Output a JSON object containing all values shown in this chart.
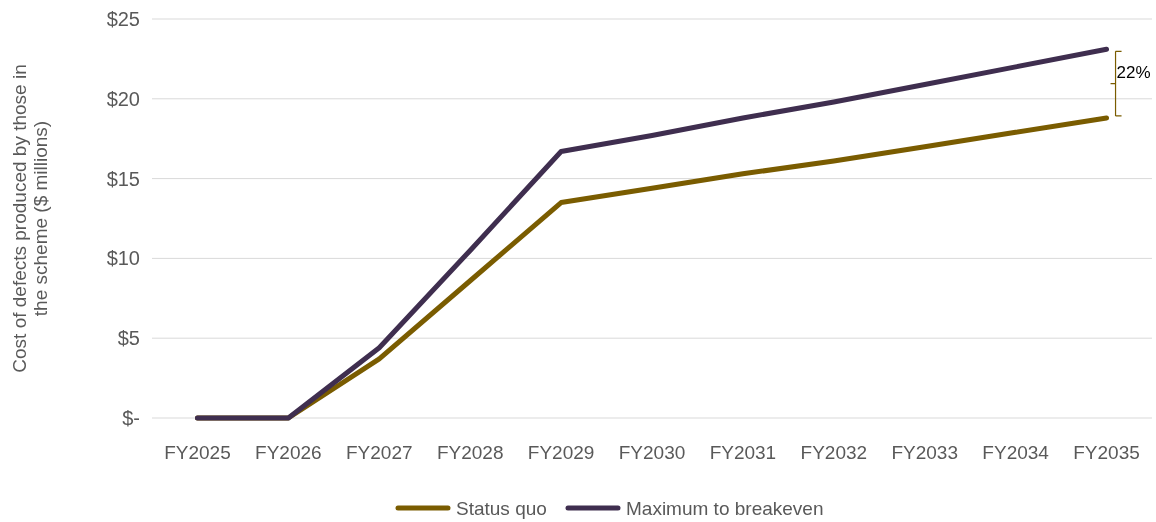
{
  "chart_data": {
    "type": "line",
    "ylabel": "Cost of defects produced by those in the scheme ($ millions)",
    "categories": [
      "FY2025",
      "FY2026",
      "FY2027",
      "FY2028",
      "FY2029",
      "FY2030",
      "FY2031",
      "FY2032",
      "FY2033",
      "FY2034",
      "FY2035"
    ],
    "series": [
      {
        "name": "Status quo",
        "color": "#7a5c00",
        "values": [
          0,
          0,
          3.7,
          8.6,
          13.5,
          14.4,
          15.3,
          16.1,
          17.0,
          17.9,
          18.8
        ]
      },
      {
        "name": "Maximum to breakeven",
        "color": "#3f2e4f",
        "values": [
          0,
          0,
          4.4,
          10.5,
          16.7,
          17.7,
          18.8,
          19.8,
          20.9,
          22.0,
          23.1
        ]
      }
    ],
    "ylim": [
      0,
      25
    ],
    "yticks": [
      {
        "value": 0,
        "label": "$-"
      },
      {
        "value": 5,
        "label": "$5"
      },
      {
        "value": 10,
        "label": "$10"
      },
      {
        "value": 15,
        "label": "$15"
      },
      {
        "value": 20,
        "label": "$20"
      },
      {
        "value": 25,
        "label": "$25"
      }
    ],
    "grid": "y",
    "legend": "bottom",
    "marker": "none",
    "line_style": "solid",
    "annotations": [
      "22%"
    ]
  }
}
